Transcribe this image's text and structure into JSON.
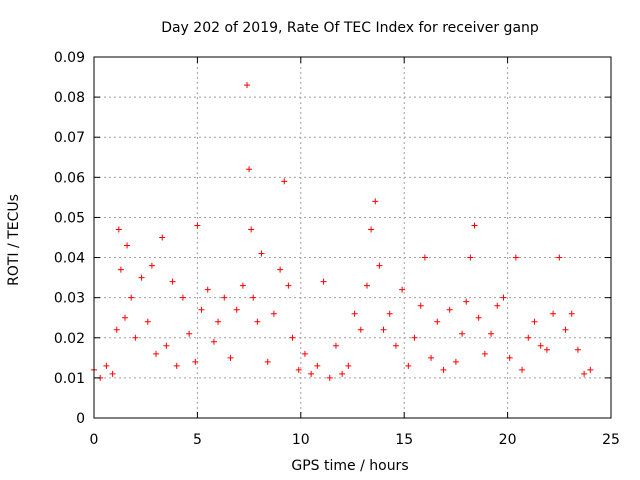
{
  "chart_data": {
    "type": "scatter",
    "title": "Day 202 of 2019, Rate Of TEC Index for receiver ganp",
    "xlabel": "GPS time / hours",
    "ylabel": "ROTI / TECUs",
    "xlim": [
      0,
      25
    ],
    "ylim": [
      0,
      0.09
    ],
    "x_ticks": [
      0,
      5,
      10,
      15,
      20,
      25
    ],
    "x_tick_labels": [
      "0",
      "5",
      "10",
      "15",
      "20",
      "25"
    ],
    "y_ticks": [
      0,
      0.01,
      0.02,
      0.03,
      0.04,
      0.05,
      0.06,
      0.07,
      0.08,
      0.09
    ],
    "y_tick_labels": [
      "0",
      "0.01",
      "0.02",
      "0.03",
      "0.04",
      "0.05",
      "0.06",
      "0.07",
      "0.08",
      "0.09"
    ],
    "grid": true,
    "marker": "+",
    "series": [
      {
        "name": "ROTI",
        "color": "#ff0000",
        "x": [
          0.0,
          0.3,
          0.6,
          0.9,
          1.1,
          1.2,
          1.3,
          1.5,
          1.6,
          1.8,
          2.0,
          2.3,
          2.6,
          2.8,
          3.0,
          3.3,
          3.5,
          3.8,
          4.0,
          4.3,
          4.6,
          4.9,
          5.0,
          5.2,
          5.5,
          5.8,
          6.0,
          6.3,
          6.6,
          6.9,
          7.2,
          7.4,
          7.5,
          7.6,
          7.7,
          7.9,
          8.1,
          8.4,
          8.7,
          9.0,
          9.2,
          9.4,
          9.6,
          9.9,
          10.2,
          10.5,
          10.8,
          11.1,
          11.4,
          11.7,
          12.0,
          12.3,
          12.6,
          12.9,
          13.2,
          13.4,
          13.6,
          13.8,
          14.0,
          14.3,
          14.6,
          14.9,
          15.2,
          15.5,
          15.8,
          16.0,
          16.3,
          16.6,
          16.9,
          17.2,
          17.5,
          17.8,
          18.0,
          18.2,
          18.4,
          18.6,
          18.9,
          19.2,
          19.5,
          19.8,
          20.1,
          20.4,
          20.7,
          21.0,
          21.3,
          21.6,
          21.9,
          22.2,
          22.5,
          22.8,
          23.1,
          23.4,
          23.7,
          24.0
        ],
        "y": [
          0.012,
          0.01,
          0.013,
          0.011,
          0.022,
          0.047,
          0.037,
          0.025,
          0.043,
          0.03,
          0.02,
          0.035,
          0.024,
          0.038,
          0.016,
          0.045,
          0.018,
          0.034,
          0.013,
          0.03,
          0.021,
          0.014,
          0.048,
          0.027,
          0.032,
          0.019,
          0.024,
          0.03,
          0.015,
          0.027,
          0.033,
          0.083,
          0.062,
          0.047,
          0.03,
          0.024,
          0.041,
          0.014,
          0.026,
          0.037,
          0.059,
          0.033,
          0.02,
          0.012,
          0.016,
          0.011,
          0.013,
          0.034,
          0.01,
          0.018,
          0.011,
          0.013,
          0.026,
          0.022,
          0.033,
          0.047,
          0.054,
          0.038,
          0.022,
          0.026,
          0.018,
          0.032,
          0.013,
          0.02,
          0.028,
          0.04,
          0.015,
          0.024,
          0.012,
          0.027,
          0.014,
          0.021,
          0.029,
          0.04,
          0.048,
          0.025,
          0.016,
          0.021,
          0.028,
          0.03,
          0.015,
          0.04,
          0.012,
          0.02,
          0.024,
          0.018,
          0.017,
          0.026,
          0.04,
          0.022,
          0.026,
          0.017,
          0.011,
          0.012
        ]
      }
    ]
  }
}
